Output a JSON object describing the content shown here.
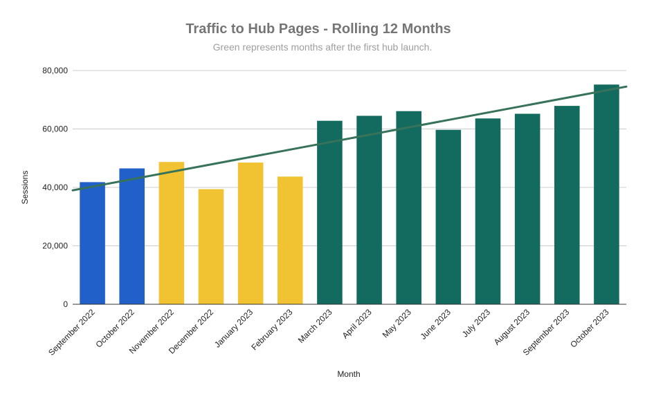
{
  "chart_data": {
    "type": "bar",
    "title": "Traffic to Hub Pages - Rolling 12 Months",
    "subtitle": "Green represents months after the first hub launch.",
    "xlabel": "Month",
    "ylabel": "Sessions",
    "ylim": [
      0,
      80000
    ],
    "yticks": [
      0,
      20000,
      40000,
      60000,
      80000
    ],
    "ytick_labels": [
      "0",
      "20,000",
      "40,000",
      "60,000",
      "80,000"
    ],
    "grid": true,
    "categories": [
      "September 2022",
      "October 2022",
      "November 2022",
      "December 2022",
      "January 2023",
      "February 2023",
      "March 2023",
      "April 2023",
      "May 2023",
      "June 2023",
      "July 2023",
      "August 2023",
      "September 2023",
      "October 2023"
    ],
    "values": [
      41800,
      46500,
      48700,
      39400,
      48500,
      43700,
      62800,
      64500,
      66100,
      59700,
      63600,
      65200,
      67900,
      75200
    ],
    "bar_colors": [
      "#2260c9",
      "#2260c9",
      "#f1c232",
      "#f1c232",
      "#f1c232",
      "#f1c232",
      "#136a5f",
      "#136a5f",
      "#136a5f",
      "#136a5f",
      "#136a5f",
      "#136a5f",
      "#136a5f",
      "#136a5f"
    ],
    "trendline": {
      "type": "linear",
      "color": "#36735a",
      "start_value": 39000,
      "end_value": 74500
    }
  }
}
